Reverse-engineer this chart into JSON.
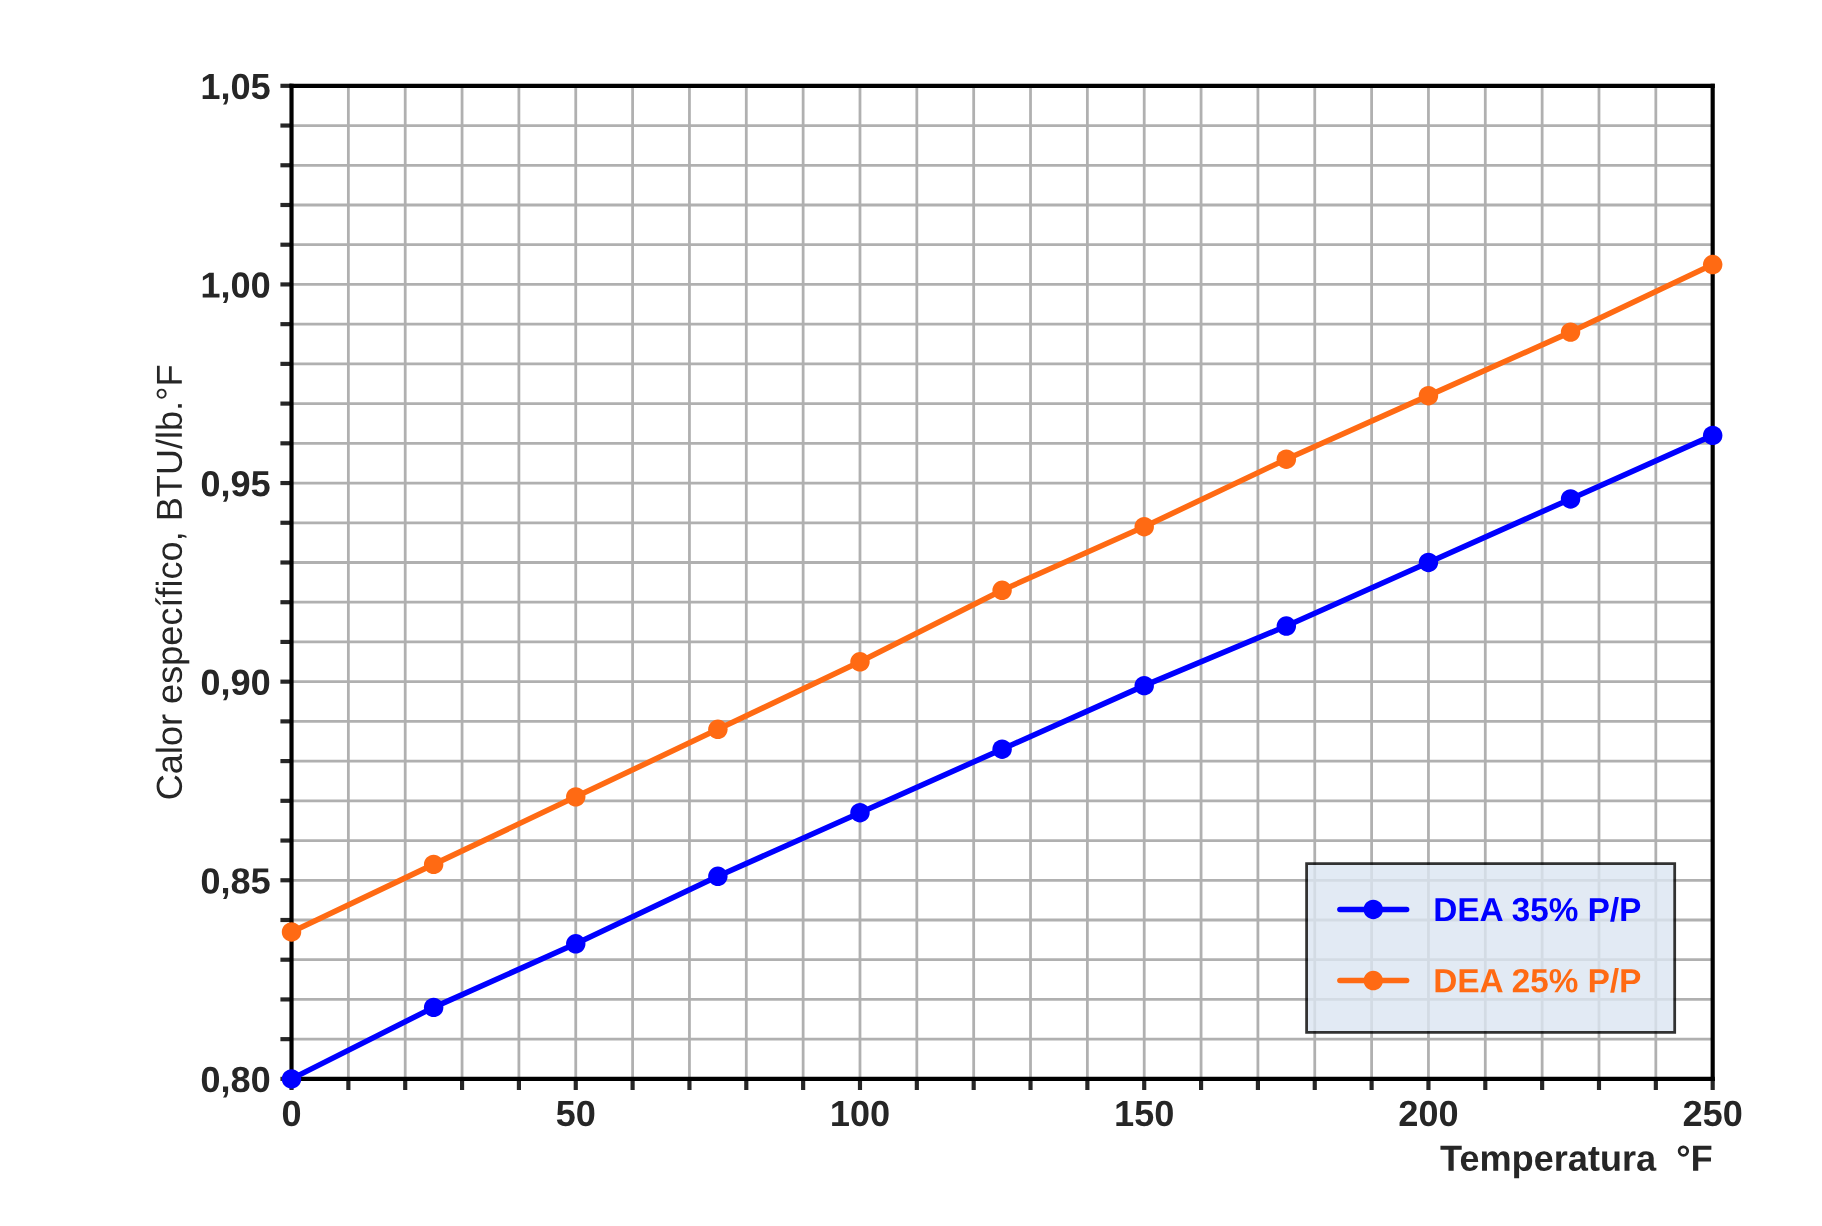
{
  "chart_data": {
    "type": "line",
    "xlabel": "Temperatura  °F",
    "ylabel": "Calor específico, BTU/lb.°F",
    "x": [
      0,
      25,
      50,
      75,
      100,
      125,
      150,
      175,
      200,
      225,
      250
    ],
    "series": [
      {
        "name": "DEA 35% P/P",
        "color": "#0000ff",
        "values": [
          0.8,
          0.818,
          0.834,
          0.851,
          0.867,
          0.883,
          0.899,
          0.914,
          0.93,
          0.946,
          0.962
        ]
      },
      {
        "name": "DEA 25% P/P",
        "color": "#ff6a13",
        "values": [
          0.837,
          0.854,
          0.871,
          0.888,
          0.905,
          0.923,
          0.939,
          0.956,
          0.972,
          0.988,
          1.005
        ]
      }
    ],
    "xlim": [
      0,
      250
    ],
    "ylim": [
      0.8,
      1.05
    ],
    "xticks": [
      0,
      {
        "value": 10,
        "label": null
      },
      {
        "value": 20,
        "label": null
      },
      {
        "value": 30,
        "label": null
      },
      {
        "value": 40,
        "label": null
      },
      50,
      {
        "value": 60,
        "label": null
      },
      {
        "value": 70,
        "label": null
      },
      {
        "value": 80,
        "label": null
      },
      {
        "value": 90,
        "label": null
      },
      100,
      {
        "value": 110,
        "label": null
      },
      {
        "value": 120,
        "label": null
      },
      {
        "value": 130,
        "label": null
      },
      {
        "value": 140,
        "label": null
      },
      150,
      {
        "value": 160,
        "label": null
      },
      {
        "value": 170,
        "label": null
      },
      {
        "value": 180,
        "label": null
      },
      {
        "value": 190,
        "label": null
      },
      200,
      {
        "value": 210,
        "label": null
      },
      {
        "value": 220,
        "label": null
      },
      {
        "value": 230,
        "label": null
      },
      {
        "value": 240,
        "label": null
      },
      250
    ],
    "yticks": [
      {
        "value": 0.8,
        "label": "0,80"
      },
      {
        "value": 0.81,
        "label": null
      },
      {
        "value": 0.82,
        "label": null
      },
      {
        "value": 0.83,
        "label": null
      },
      {
        "value": 0.84,
        "label": null
      },
      {
        "value": 0.85,
        "label": "0,85"
      },
      {
        "value": 0.86,
        "label": null
      },
      {
        "value": 0.87,
        "label": null
      },
      {
        "value": 0.88,
        "label": null
      },
      {
        "value": 0.89,
        "label": null
      },
      {
        "value": 0.9,
        "label": "0,90"
      },
      {
        "value": 0.91,
        "label": null
      },
      {
        "value": 0.92,
        "label": null
      },
      {
        "value": 0.93,
        "label": null
      },
      {
        "value": 0.94,
        "label": null
      },
      {
        "value": 0.95,
        "label": "0,95"
      },
      {
        "value": 0.96,
        "label": null
      },
      {
        "value": 0.97,
        "label": null
      },
      {
        "value": 0.98,
        "label": null
      },
      {
        "value": 0.99,
        "label": null
      },
      {
        "value": 1.0,
        "label": "1,00"
      },
      {
        "value": 1.01,
        "label": null
      },
      {
        "value": 1.02,
        "label": null
      },
      {
        "value": 1.03,
        "label": null
      },
      {
        "value": 1.04,
        "label": null
      },
      {
        "value": 1.05,
        "label": "1,05"
      }
    ],
    "grid": true,
    "legend": "bottom right",
    "marker": "circle",
    "line_style": "solid"
  }
}
